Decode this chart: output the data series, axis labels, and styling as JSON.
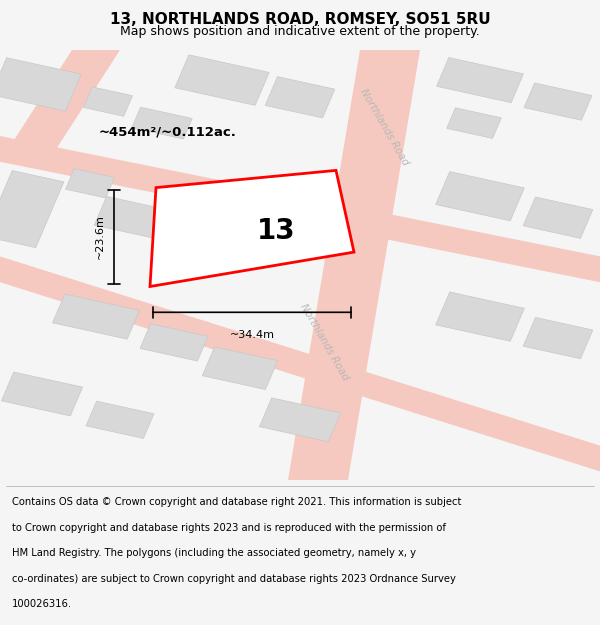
{
  "title": "13, NORTHLANDS ROAD, ROMSEY, SO51 5RU",
  "subtitle": "Map shows position and indicative extent of the property.",
  "footer_lines": [
    "Contains OS data © Crown copyright and database right 2021. This information is subject",
    "to Crown copyright and database rights 2023 and is reproduced with the permission of",
    "HM Land Registry. The polygons (including the associated geometry, namely x, y",
    "co-ordinates) are subject to Crown copyright and database rights 2023 Ordnance Survey",
    "100026316."
  ],
  "bg_color": "#f5f5f5",
  "map_bg": "#ffffff",
  "building_fill": "#d8d8d8",
  "building_edge": "#c8c8c8",
  "road_color": "#f5c8c0",
  "highlight_color": "#ff0000",
  "highlight_lw": 2.0,
  "label_number": "13",
  "area_label": "~454m²/~0.112ac.",
  "dim_width": "~34.4m",
  "dim_height": "~23.6m",
  "road_label": "Northlands Road",
  "title_fontsize": 11,
  "subtitle_fontsize": 9,
  "footer_fontsize": 7.2
}
